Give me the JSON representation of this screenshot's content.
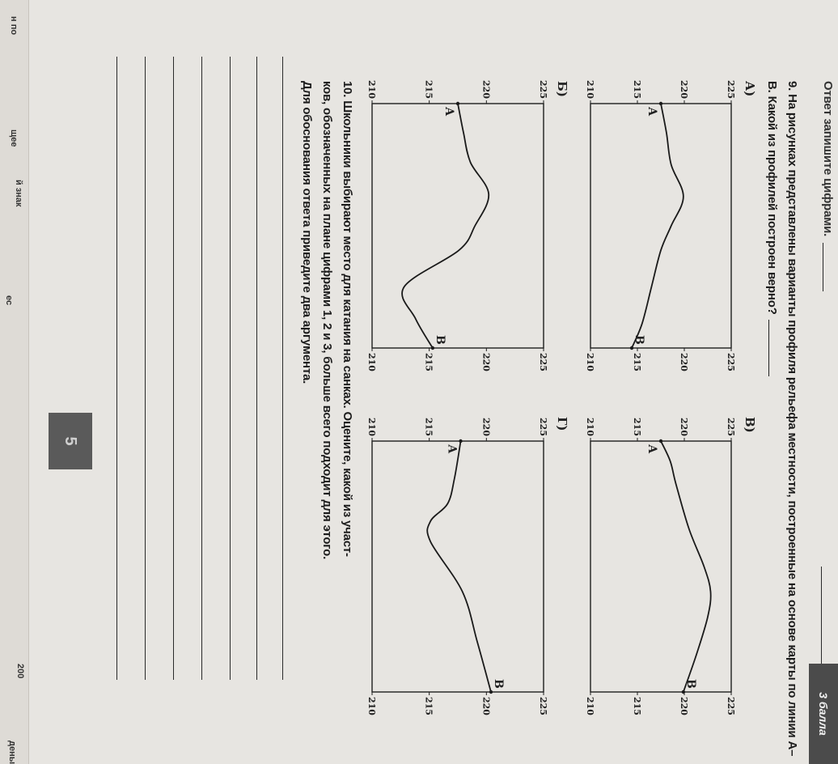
{
  "header": {
    "previous_answer_prompt": "Ответ запишите цифрами.",
    "score_badge": "3 балла"
  },
  "question9": {
    "text": "9. На рисунках представлены варианты профиля рельефа местности, построенные на основе карты по линии А–В. Какой из профилей построен верно?"
  },
  "chart_data": [
    {
      "type": "line",
      "label": "А)",
      "ylim": [
        210,
        225
      ],
      "yticks": [
        225,
        220,
        215,
        210
      ],
      "start_label": "А",
      "end_label": "В",
      "x": [
        0,
        0.12,
        0.25,
        0.38,
        0.5,
        0.6,
        0.75,
        0.9,
        1
      ],
      "values": [
        217.5,
        218.1,
        218.6,
        219.9,
        218.6,
        217.5,
        216.5,
        215.5,
        214.4
      ]
    },
    {
      "type": "line",
      "label": "В)",
      "ylim": [
        210,
        225
      ],
      "yticks": [
        225,
        220,
        215,
        210
      ],
      "start_label": "А",
      "end_label": "В",
      "x": [
        0,
        0.08,
        0.17,
        0.35,
        0.5,
        0.6,
        0.7,
        0.85,
        1
      ],
      "values": [
        217.5,
        218.5,
        219.1,
        220.5,
        222.1,
        222.8,
        222.5,
        221.3,
        219.9
      ]
    },
    {
      "type": "line",
      "label": "Б)",
      "ylim": [
        210,
        225
      ],
      "yticks": [
        225,
        220,
        215,
        210
      ],
      "start_label": "А",
      "end_label": "В",
      "x": [
        0,
        0.12,
        0.24,
        0.37,
        0.5,
        0.6,
        0.75,
        0.88,
        1
      ],
      "values": [
        217.5,
        218.0,
        218.6,
        220.2,
        219.0,
        217.6,
        212.8,
        213.8,
        215.3
      ]
    },
    {
      "type": "line",
      "label": "Г)",
      "ylim": [
        210,
        225
      ],
      "yticks": [
        225,
        220,
        215,
        210
      ],
      "start_label": "А",
      "end_label": "В",
      "x": [
        0,
        0.15,
        0.25,
        0.32,
        0.4,
        0.6,
        0.8,
        1
      ],
      "values": [
        217.75,
        217.2,
        216.6,
        215.1,
        215.1,
        217.9,
        219.2,
        220.4
      ]
    }
  ],
  "question10": {
    "line1": "10. Школьники выбирают место для катания на санках. Оцените, какой из участ-",
    "line2": "ков, обозначенных на плане цифрами 1, 2 и 3, больше всего подходит для этого.",
    "line3": "Для обоснования ответа приведите два аргумента."
  },
  "footer": {
    "page_number": "5"
  },
  "adjacent_page": {
    "fragments": [
      "н по",
      "щее",
      "й знак",
      "ес",
      "200",
      "дены"
    ]
  },
  "colors": {
    "ink": "#1c1c1c",
    "paper": "#e7e5e1",
    "badge": "#4b4b4b"
  }
}
